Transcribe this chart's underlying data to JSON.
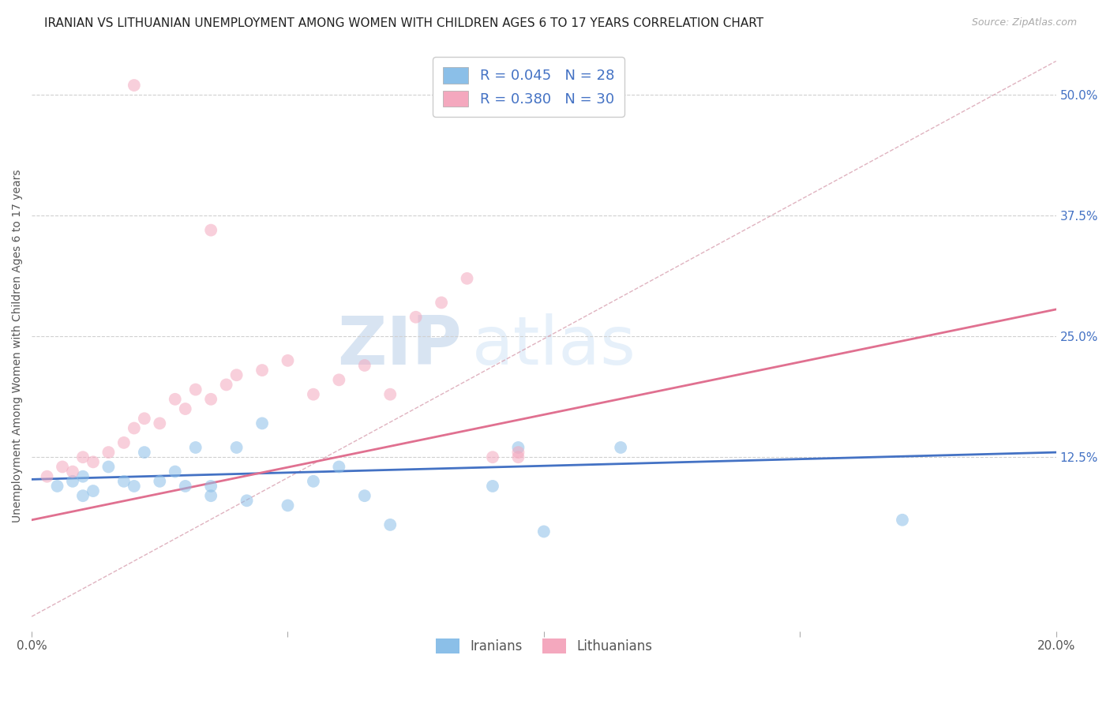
{
  "title": "IRANIAN VS LITHUANIAN UNEMPLOYMENT AMONG WOMEN WITH CHILDREN AGES 6 TO 17 YEARS CORRELATION CHART",
  "source": "Source: ZipAtlas.com",
  "ylabel": "Unemployment Among Women with Children Ages 6 to 17 years",
  "xlim": [
    0.0,
    0.2
  ],
  "ylim": [
    -0.055,
    0.535
  ],
  "yticks": [
    0.125,
    0.25,
    0.375,
    0.5
  ],
  "yticklabels": [
    "12.5%",
    "25.0%",
    "37.5%",
    "50.0%"
  ],
  "grid_color": "#d0d0d0",
  "background_color": "#ffffff",
  "watermark_zip": "ZIP",
  "watermark_atlas": "atlas",
  "iranians_color": "#8bbfe8",
  "lithuanians_color": "#f4a8be",
  "iranians_label": "Iranians",
  "lithuanians_label": "Lithuanians",
  "title_fontsize": 11,
  "axis_label_fontsize": 10,
  "tick_fontsize": 11,
  "iranians_x": [
    0.005,
    0.008,
    0.01,
    0.01,
    0.012,
    0.015,
    0.018,
    0.02,
    0.022,
    0.025,
    0.028,
    0.03,
    0.032,
    0.035,
    0.035,
    0.04,
    0.042,
    0.045,
    0.05,
    0.055,
    0.06,
    0.065,
    0.07,
    0.09,
    0.095,
    0.1,
    0.115,
    0.17
  ],
  "iranians_y": [
    0.095,
    0.1,
    0.085,
    0.105,
    0.09,
    0.115,
    0.1,
    0.095,
    0.13,
    0.1,
    0.11,
    0.095,
    0.135,
    0.085,
    0.095,
    0.135,
    0.08,
    0.16,
    0.075,
    0.1,
    0.115,
    0.085,
    0.055,
    0.095,
    0.135,
    0.048,
    0.135,
    0.06
  ],
  "lithuanians_x": [
    0.003,
    0.006,
    0.008,
    0.01,
    0.012,
    0.015,
    0.018,
    0.02,
    0.022,
    0.025,
    0.028,
    0.03,
    0.032,
    0.035,
    0.038,
    0.04,
    0.045,
    0.05,
    0.055,
    0.06,
    0.065,
    0.07,
    0.075,
    0.08,
    0.085,
    0.09,
    0.095,
    0.02,
    0.035,
    0.095
  ],
  "lithuanians_y": [
    0.105,
    0.115,
    0.11,
    0.125,
    0.12,
    0.13,
    0.14,
    0.155,
    0.165,
    0.16,
    0.185,
    0.175,
    0.195,
    0.185,
    0.2,
    0.21,
    0.215,
    0.225,
    0.19,
    0.205,
    0.22,
    0.19,
    0.27,
    0.285,
    0.31,
    0.125,
    0.125,
    0.51,
    0.36,
    0.13
  ],
  "blue_line_x": [
    0.0,
    0.2
  ],
  "blue_line_y": [
    0.102,
    0.13
  ],
  "pink_line_x": [
    0.0,
    0.2
  ],
  "pink_line_y": [
    0.06,
    0.278
  ],
  "ref_line_x": [
    0.0,
    0.2
  ],
  "ref_line_y": [
    -0.04,
    0.535
  ],
  "iranians_trendline_color": "#4472c4",
  "lithuanians_trendline_color": "#e07090",
  "ref_line_color": "#d8a0b0",
  "marker_size": 130,
  "marker_alpha": 0.55,
  "legend_text_color": "#4472c4",
  "legend_r1": "R = 0.045",
  "legend_n1": "N = 28",
  "legend_r2": "R = 0.380",
  "legend_n2": "N = 30"
}
